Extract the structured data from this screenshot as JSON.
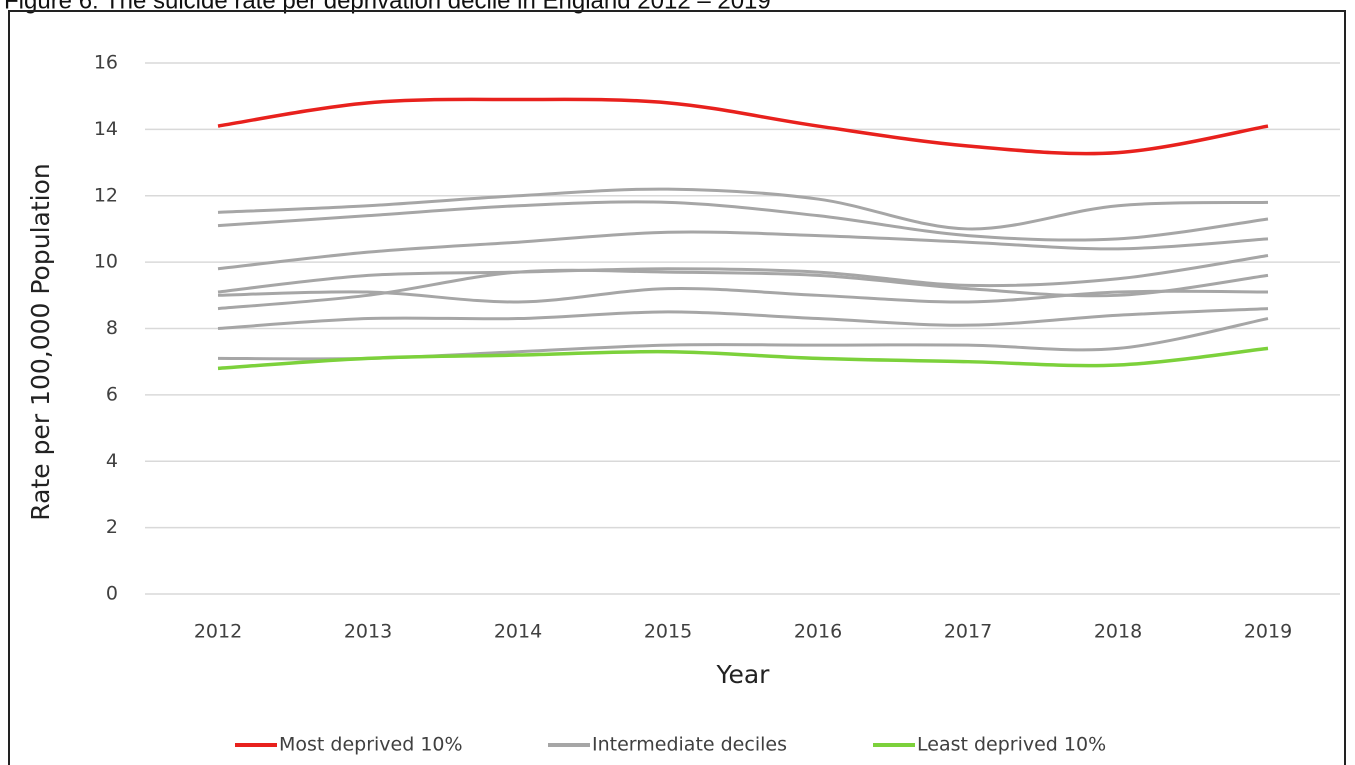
{
  "chart_data": {
    "type": "line",
    "title": "Figure 6: The suicide rate per deprivation decile in England 2012 – 2019",
    "x_label": "Year",
    "y_label": "Rate per 100,000 Population",
    "categories": [
      "2012",
      "2013",
      "2014",
      "2015",
      "2016",
      "2017",
      "2018",
      "2019"
    ],
    "ylim": [
      0,
      16
    ],
    "yticks": [
      0,
      2,
      4,
      6,
      8,
      10,
      12,
      14,
      16
    ],
    "grid": true,
    "smooth": true,
    "legend": "bottom",
    "series": [
      {
        "name": "Most deprived 10%",
        "color": "#e8211d",
        "values": [
          14.1,
          14.8,
          14.9,
          14.8,
          14.1,
          13.5,
          13.3,
          14.1
        ]
      },
      {
        "name": "Intermediate deciles",
        "color": "#a6a6a6",
        "lines": [
          [
            11.5,
            11.7,
            12.0,
            12.2,
            11.9,
            11.0,
            11.7,
            11.8
          ],
          [
            11.1,
            11.4,
            11.7,
            11.8,
            11.4,
            10.8,
            10.7,
            11.3
          ],
          [
            9.8,
            10.3,
            10.6,
            10.9,
            10.8,
            10.6,
            10.4,
            10.7
          ],
          [
            9.1,
            9.6,
            9.7,
            9.8,
            9.7,
            9.3,
            9.5,
            10.2
          ],
          [
            8.6,
            9.0,
            9.7,
            9.7,
            9.6,
            9.2,
            9.0,
            9.6
          ],
          [
            9.0,
            9.1,
            8.8,
            9.2,
            9.0,
            8.8,
            9.1,
            9.1
          ],
          [
            8.0,
            8.3,
            8.3,
            8.5,
            8.3,
            8.1,
            8.4,
            8.6
          ],
          [
            7.1,
            7.1,
            7.3,
            7.5,
            7.5,
            7.5,
            7.4,
            8.3
          ]
        ]
      },
      {
        "name": "Least deprived 10%",
        "color": "#7cd13b",
        "values": [
          6.8,
          7.1,
          7.2,
          7.3,
          7.1,
          7.0,
          6.9,
          7.4
        ]
      }
    ]
  }
}
